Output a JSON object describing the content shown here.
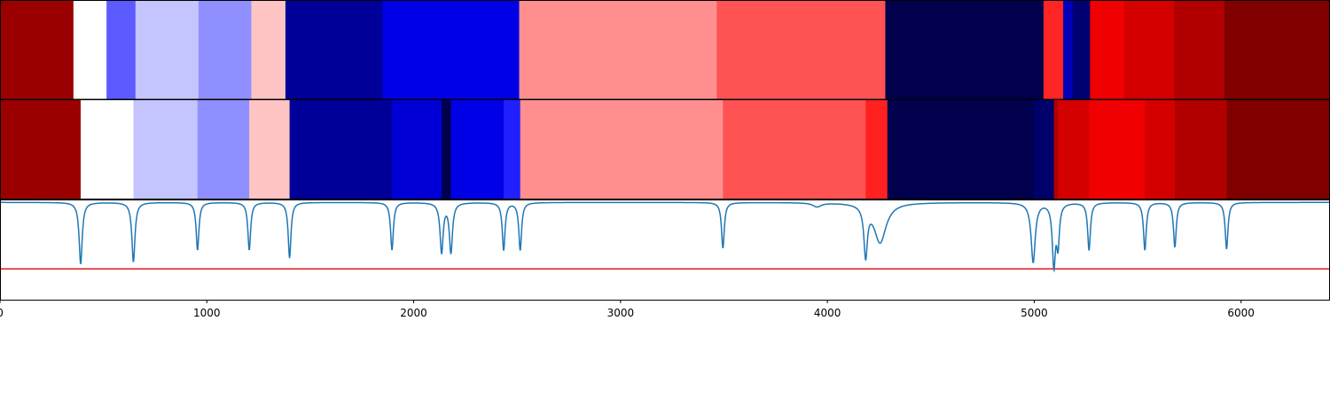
{
  "chart_data": {
    "type": "heatmap",
    "title": "",
    "xlabel": "",
    "ylabel": "",
    "xlim": [
      0,
      6430
    ],
    "xticks": [
      0,
      1000,
      2000,
      3000,
      4000,
      5000,
      6000
    ],
    "xtick_labels": [
      "0",
      "1000",
      "2000",
      "3000",
      "4000",
      "5000",
      "6000"
    ],
    "grid": false,
    "legend": "none",
    "rows": [
      {
        "segments": [
          {
            "start": 0,
            "end": 355,
            "color": "#9b0000"
          },
          {
            "start": 355,
            "end": 515,
            "color": "#ffffff"
          },
          {
            "start": 515,
            "end": 655,
            "color": "#5b5bff"
          },
          {
            "start": 655,
            "end": 960,
            "color": "#c4c4ff"
          },
          {
            "start": 960,
            "end": 1215,
            "color": "#8f8fff"
          },
          {
            "start": 1215,
            "end": 1380,
            "color": "#ffc4c4"
          },
          {
            "start": 1380,
            "end": 1850,
            "color": "#000099"
          },
          {
            "start": 1850,
            "end": 2510,
            "color": "#0000e6"
          },
          {
            "start": 2510,
            "end": 3465,
            "color": "#ff8f8f"
          },
          {
            "start": 3465,
            "end": 4280,
            "color": "#ff5353"
          },
          {
            "start": 4280,
            "end": 5045,
            "color": "#00004c"
          },
          {
            "start": 5045,
            "end": 5140,
            "color": "#ff2525"
          },
          {
            "start": 5140,
            "end": 5185,
            "color": "#0000b8"
          },
          {
            "start": 5185,
            "end": 5270,
            "color": "#000073"
          },
          {
            "start": 5270,
            "end": 5435,
            "color": "#f00000"
          },
          {
            "start": 5435,
            "end": 5675,
            "color": "#d40000"
          },
          {
            "start": 5675,
            "end": 5920,
            "color": "#b20000"
          },
          {
            "start": 5920,
            "end": 6430,
            "color": "#800000"
          }
        ]
      },
      {
        "segments": [
          {
            "start": 0,
            "end": 390,
            "color": "#9b0000"
          },
          {
            "start": 390,
            "end": 645,
            "color": "#ffffff"
          },
          {
            "start": 645,
            "end": 955,
            "color": "#c4c4ff"
          },
          {
            "start": 955,
            "end": 1205,
            "color": "#8f8fff"
          },
          {
            "start": 1205,
            "end": 1400,
            "color": "#ffc4c4"
          },
          {
            "start": 1400,
            "end": 1895,
            "color": "#000099"
          },
          {
            "start": 1895,
            "end": 2135,
            "color": "#0000d6"
          },
          {
            "start": 2135,
            "end": 2180,
            "color": "#00004c"
          },
          {
            "start": 2180,
            "end": 2435,
            "color": "#0000e6"
          },
          {
            "start": 2435,
            "end": 2515,
            "color": "#2020ff"
          },
          {
            "start": 2515,
            "end": 3495,
            "color": "#ff8f8f"
          },
          {
            "start": 3495,
            "end": 4185,
            "color": "#ff5353"
          },
          {
            "start": 4185,
            "end": 4290,
            "color": "#ff2020"
          },
          {
            "start": 4290,
            "end": 4995,
            "color": "#00004c"
          },
          {
            "start": 4995,
            "end": 5095,
            "color": "#00006b"
          },
          {
            "start": 5095,
            "end": 5115,
            "color": "#b00000"
          },
          {
            "start": 5115,
            "end": 5265,
            "color": "#d40000"
          },
          {
            "start": 5265,
            "end": 5535,
            "color": "#f00000"
          },
          {
            "start": 5535,
            "end": 5680,
            "color": "#d40000"
          },
          {
            "start": 5680,
            "end": 5930,
            "color": "#b20000"
          },
          {
            "start": 5930,
            "end": 6430,
            "color": "#800000"
          }
        ]
      }
    ],
    "line_panel": {
      "ylim": [
        0,
        1
      ],
      "threshold": 0.31,
      "threshold_color": "#e41a1c",
      "line_color": "#1f77b4",
      "baseline": 0.98,
      "dips": [
        {
          "x": 390,
          "depth": 0.62,
          "width": 9
        },
        {
          "x": 645,
          "depth": 0.6,
          "width": 9
        },
        {
          "x": 955,
          "depth": 0.48,
          "width": 8
        },
        {
          "x": 1205,
          "depth": 0.48,
          "width": 8
        },
        {
          "x": 1400,
          "depth": 0.56,
          "width": 8
        },
        {
          "x": 1895,
          "depth": 0.48,
          "width": 8
        },
        {
          "x": 2135,
          "depth": 0.5,
          "width": 9
        },
        {
          "x": 2180,
          "depth": 0.5,
          "width": 9
        },
        {
          "x": 2435,
          "depth": 0.48,
          "width": 8
        },
        {
          "x": 2515,
          "depth": 0.48,
          "width": 8
        },
        {
          "x": 3495,
          "depth": 0.46,
          "width": 8
        },
        {
          "x": 3950,
          "depth": 0.04,
          "width": 25
        },
        {
          "x": 4185,
          "depth": 0.5,
          "width": 10
        },
        {
          "x": 4255,
          "depth": 0.4,
          "width": 35
        },
        {
          "x": 4995,
          "depth": 0.6,
          "width": 12
        },
        {
          "x": 5095,
          "depth": 0.62,
          "width": 9
        },
        {
          "x": 5115,
          "depth": 0.4,
          "width": 8
        },
        {
          "x": 5265,
          "depth": 0.48,
          "width": 8
        },
        {
          "x": 5535,
          "depth": 0.48,
          "width": 8
        },
        {
          "x": 5680,
          "depth": 0.45,
          "width": 8
        },
        {
          "x": 5930,
          "depth": 0.47,
          "width": 8
        }
      ]
    }
  }
}
